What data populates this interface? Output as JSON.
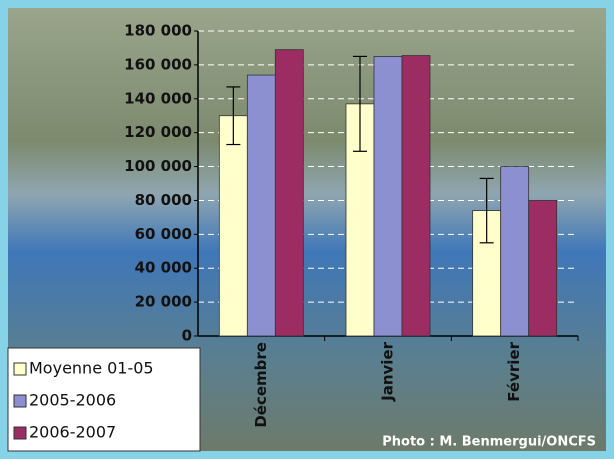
{
  "chart_data": {
    "type": "bar",
    "categories": [
      "Décembre",
      "Janvier",
      "Février"
    ],
    "series": [
      {
        "name": "Moyenne 01-05",
        "color": "#ffffcc",
        "values": [
          130000,
          137000,
          74000
        ],
        "errors": [
          17000,
          28000,
          19000
        ]
      },
      {
        "name": "2005-2006",
        "color": "#8c8fd0",
        "values": [
          154000,
          165000,
          100000
        ]
      },
      {
        "name": "2006-2007",
        "color": "#9b2d62",
        "values": [
          169000,
          165500,
          80000
        ]
      }
    ],
    "ylim": [
      0,
      180000
    ],
    "yticks": [
      0,
      {
        "value": 20000,
        "label": "20 000"
      },
      {
        "value": 40000,
        "label": "40 000"
      },
      {
        "value": 60000,
        "label": "60 000"
      },
      {
        "value": 80000,
        "label": "80 000"
      },
      {
        "value": 100000,
        "label": "100 000"
      },
      {
        "value": 120000,
        "label": "120 000"
      },
      {
        "value": 140000,
        "label": "140 000"
      },
      {
        "value": 160000,
        "label": "160 000"
      },
      {
        "value": 180000,
        "label": "180 000"
      }
    ],
    "grid": true,
    "legend": "bottom-left",
    "credit": "Photo : M. Benmergui/ONCFS"
  }
}
